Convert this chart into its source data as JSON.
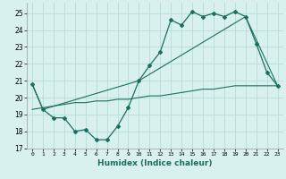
{
  "title": "",
  "xlabel": "Humidex (Indice chaleur)",
  "ylabel": "",
  "bg_color": "#d8f0ee",
  "grid_color": "#b8dcd8",
  "line_color": "#1a7060",
  "xlim": [
    -0.5,
    23.5
  ],
  "ylim": [
    17.0,
    25.6
  ],
  "yticks": [
    17,
    18,
    19,
    20,
    21,
    22,
    23,
    24,
    25
  ],
  "xticks": [
    0,
    1,
    2,
    3,
    4,
    5,
    6,
    7,
    8,
    9,
    10,
    11,
    12,
    13,
    14,
    15,
    16,
    17,
    18,
    19,
    20,
    21,
    22,
    23
  ],
  "line1_x": [
    0,
    1,
    2,
    3,
    4,
    5,
    6,
    7,
    8,
    9,
    10,
    11,
    12,
    13,
    14,
    15,
    16,
    17,
    18,
    19,
    20,
    21,
    22,
    23
  ],
  "line1_y": [
    20.8,
    19.3,
    18.8,
    18.8,
    18.0,
    18.1,
    17.5,
    17.5,
    18.3,
    19.4,
    21.0,
    21.9,
    22.7,
    24.6,
    24.3,
    25.1,
    24.8,
    25.0,
    24.8,
    25.1,
    24.8,
    23.2,
    21.5,
    20.7
  ],
  "line2_x": [
    0,
    1,
    10,
    20,
    23
  ],
  "line2_y": [
    20.8,
    19.3,
    21.0,
    24.8,
    20.7
  ],
  "line3_x": [
    0,
    1,
    2,
    3,
    4,
    5,
    6,
    7,
    8,
    9,
    10,
    11,
    12,
    13,
    14,
    15,
    16,
    17,
    18,
    19,
    20,
    21,
    22,
    23
  ],
  "line3_y": [
    19.3,
    19.4,
    19.5,
    19.6,
    19.7,
    19.7,
    19.8,
    19.8,
    19.9,
    19.9,
    20.0,
    20.1,
    20.1,
    20.2,
    20.3,
    20.4,
    20.5,
    20.5,
    20.6,
    20.7,
    20.7,
    20.7,
    20.7,
    20.7
  ]
}
